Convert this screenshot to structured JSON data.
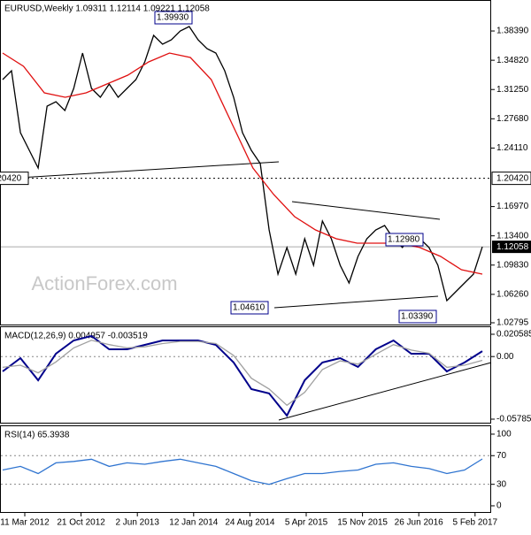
{
  "chart_data": [
    {
      "type": "line",
      "title": "EURUSD,Weekly  1.09311 1.12114 1.09221 1.12058",
      "watermark": "ActionForex.com",
      "ylim": [
        1.0247,
        1.4217
      ],
      "yticks": [
        {
          "value": 1.3839,
          "label": "1.38390"
        },
        {
          "value": 1.3482,
          "label": "1.34820"
        },
        {
          "value": 1.3125,
          "label": "1.31250"
        },
        {
          "value": 1.2768,
          "label": "1.27680"
        },
        {
          "value": 1.2411,
          "label": "1.24110"
        },
        {
          "value": 1.1697,
          "label": "1.16970"
        },
        {
          "value": 1.134,
          "label": "1.13400"
        },
        {
          "value": 1.0983,
          "label": "1.09830"
        },
        {
          "value": 1.0626,
          "label": "1.06260"
        },
        {
          "value": 1.02795,
          "label": "1.02795"
        }
      ],
      "level": {
        "value": 1.2042,
        "label": "1.20420"
      },
      "current": {
        "value": 1.12058,
        "label": "1.12058"
      },
      "annotations": [
        "1.39930",
        "1.04610",
        "1.03390",
        "1.12980"
      ],
      "series": [
        {
          "color": "#000000",
          "values": [
            1.3246,
            1.3354,
            1.2599,
            1.2383,
            1.2167,
            1.2922,
            1.2976,
            1.2869,
            1.3138,
            1.357,
            1.3138,
            1.303,
            1.3192,
            1.303,
            1.3138,
            1.3246,
            1.3462,
            1.3786,
            1.3678,
            1.3732,
            1.3839,
            1.3893,
            1.3732,
            1.3624,
            1.357,
            1.3354,
            1.303,
            1.2599,
            1.2383,
            1.2221,
            1.1412,
            1.0873,
            1.1197,
            1.0873,
            1.1304,
            1.0981,
            1.152,
            1.1304,
            1.0981,
            1.0765,
            1.1089,
            1.1304,
            1.1412,
            1.1466,
            1.1304,
            1.1197,
            1.1358,
            1.1304,
            1.1197,
            1.0981,
            1.0549,
            1.0657,
            1.0765,
            1.0873,
            1.1206
          ]
        },
        {
          "color": "#e01010",
          "values": [
            1.357,
            1.3408,
            1.3084,
            1.303,
            1.3084,
            1.3192,
            1.33,
            1.3462,
            1.357,
            1.3516,
            1.3246,
            1.2707,
            1.2167,
            1.1844,
            1.1574,
            1.1412,
            1.1304,
            1.125,
            1.125,
            1.125,
            1.1197,
            1.1089,
            1.0927,
            1.0873
          ]
        }
      ]
    },
    {
      "type": "line",
      "title": "MACD(12,26,9) 0.004957 -0.003519",
      "ylim": [
        -0.061128,
        0.027943
      ],
      "yticks": [
        0.020585,
        {
          "value": 0,
          "label": "0.00"
        },
        -0.057859
      ],
      "series": [
        {
          "color": "#00008b",
          "values": [
            -0.0137,
            -0.0015,
            -0.0219,
            0.0026,
            0.0149,
            0.019,
            0.0067,
            0.0067,
            0.0108,
            0.0149,
            0.0149,
            0.0149,
            0.0108,
            -0.0055,
            -0.0301,
            -0.0341,
            -0.0546,
            -0.0219,
            -0.0055,
            -0.0015,
            -0.0096,
            0.0067,
            0.0149,
            0.0026,
            0.0026,
            -0.0137,
            -0.0055,
            0.005
          ]
        },
        {
          "color": "#a0a0a0",
          "values": [
            -0.01,
            -0.008,
            -0.015,
            -0.005,
            0.008,
            0.015,
            0.011,
            0.008,
            0.009,
            0.012,
            0.014,
            0.014,
            0.012,
            0.001,
            -0.02,
            -0.03,
            -0.045,
            -0.033,
            -0.012,
            -0.004,
            -0.007,
            0.002,
            0.011,
            0.006,
            0.003,
            -0.01,
            -0.008,
            -0.0035
          ]
        }
      ]
    },
    {
      "type": "line",
      "title": "RSI(14) 65.3938",
      "ylim": [
        -9.9,
        112.3
      ],
      "yticks": [
        100,
        70,
        30,
        0
      ],
      "xtick_labels": [
        "11 Mar 2012",
        "21 Oct 2012",
        "2 Jun 2013",
        "12 Jan 2014",
        "24 Aug 2014",
        "5 Apr 2015",
        "15 Nov 2015",
        "26 Jun 2016",
        "5 Feb 2017"
      ],
      "series": [
        {
          "color": "#2f74d0",
          "values": [
            50,
            55,
            45,
            60,
            62,
            65,
            55,
            60,
            58,
            62,
            65,
            60,
            55,
            45,
            35,
            30,
            38,
            45,
            45,
            48,
            50,
            58,
            60,
            55,
            52,
            45,
            50,
            65.39
          ]
        }
      ]
    }
  ]
}
